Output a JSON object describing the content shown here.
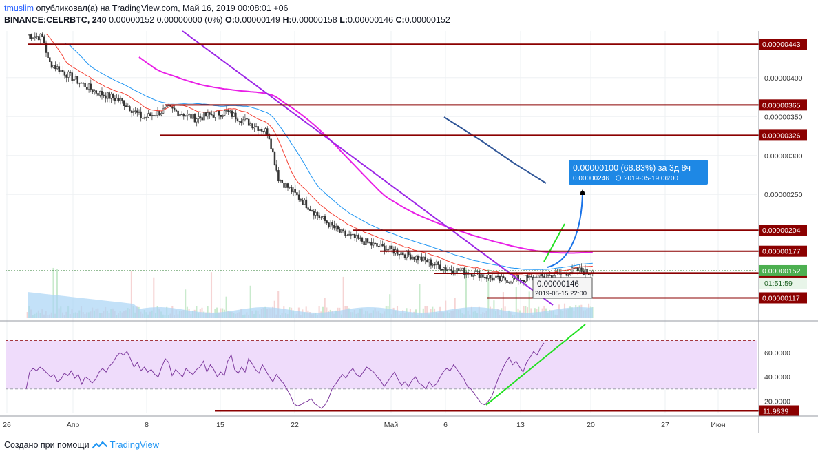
{
  "header": {
    "user": "tmuslim",
    "published": "опубликовал(а) на TradingView.com, Май 16, 2019 00:08:01 +06",
    "symbol": "BINANCE:CELRBTC, 240",
    "quote": "0.00000152 0.00000000 (0%)",
    "o_label": "O:",
    "o_value": "0.00000149",
    "h_label": "H:",
    "h_value": "0.00000158",
    "l_label": "L:",
    "l_value": "0.00000146",
    "c_label": "C:",
    "c_value": "0.00000152"
  },
  "footer": {
    "text": "Создано при помощи",
    "brand": "TradingView"
  },
  "colors": {
    "up": "#26a69a",
    "down": "#ef5350",
    "level": "#8b0000",
    "ma_purple": "#e91fe6",
    "trend_purple": "#9c27e6",
    "ema_red": "#f44336",
    "ema_blue": "#2196f3",
    "dark_blue_line": "#2f5597",
    "green_line": "#22e022",
    "rsi_line": "#7e3a9e",
    "rsi_band": "#efdcfb",
    "projection_blue": "#1a73e8"
  },
  "chart_data": [
    {
      "type": "candlestick",
      "symbol": "BINANCE:CELRBTC",
      "interval": "240",
      "x_ticks": [
        "26",
        "Апр",
        "8",
        "15",
        "22",
        "Май",
        "6",
        "13",
        "20",
        "27",
        "Июн"
      ],
      "y_ticks": [
        "0.00000400",
        "0.00000350",
        "0.00000300",
        "0.00000250"
      ],
      "y_range": [
        9e-07,
        4.6e-06
      ],
      "price_path": [
        [
          0.0,
          455
        ],
        [
          1.5,
          452
        ],
        [
          2.0,
          420
        ],
        [
          4.5,
          398
        ],
        [
          6.5,
          382
        ],
        [
          9.0,
          370
        ],
        [
          11.0,
          348
        ],
        [
          13.5,
          360
        ],
        [
          16.0,
          348
        ],
        [
          19.0,
          356
        ],
        [
          23.0,
          330
        ],
        [
          24.0,
          270
        ],
        [
          26.0,
          245
        ],
        [
          28.0,
          220
        ],
        [
          30.0,
          200
        ],
        [
          33.0,
          185
        ],
        [
          36.5,
          172
        ],
        [
          40.0,
          155
        ],
        [
          43.0,
          148
        ],
        [
          45.0,
          140
        ],
        [
          48.5,
          142
        ],
        [
          51.0,
          148
        ],
        [
          52.5,
          153
        ],
        [
          53.5,
          149
        ],
        [
          54.0,
          152
        ]
      ],
      "horizontal_levels": [
        {
          "price": "0.00000443",
          "value": 4.43e-06
        },
        {
          "price": "0.00000365",
          "value": 3.65e-06
        },
        {
          "price": "0.00000326",
          "value": 3.26e-06
        },
        {
          "price": "0.00000204",
          "value": 2.04e-06
        },
        {
          "price": "0.00000177",
          "value": 1.77e-06
        },
        {
          "price": "0.00000149",
          "value": 1.49e-06
        },
        {
          "price": "0.00000117",
          "value": 1.17e-06
        }
      ],
      "current_price": "0.00000152",
      "countdown": "01:51:59",
      "hover_label": {
        "price": "0.00000146",
        "date": "2019-05-15 22:00"
      },
      "projection": {
        "line1": "0.00000100 (68.83%) за 3д 8ч",
        "line2_price": "0.00000246",
        "line2_date": "2019-05-19  06:00"
      }
    },
    {
      "type": "line",
      "indicator": "RSI",
      "y_ticks": [
        "60.0000",
        "40.0000",
        "20.0000"
      ],
      "y_range": [
        10,
        85
      ],
      "bands": [
        70,
        30
      ],
      "level_line": {
        "label": "11.9839",
        "value": 11.9839
      },
      "values": [
        30,
        44,
        47,
        45,
        48,
        46,
        43,
        40,
        42,
        36,
        38,
        43,
        41,
        45,
        39,
        42,
        34,
        40,
        38,
        35,
        38,
        44,
        47,
        44,
        49,
        52,
        57,
        60,
        58,
        61,
        55,
        48,
        52,
        45,
        48,
        44,
        46,
        42,
        40,
        48,
        55,
        52,
        41,
        46,
        43,
        40,
        47,
        44,
        42,
        46,
        48,
        53,
        44,
        50,
        46,
        40,
        44,
        41,
        53,
        58,
        46,
        43,
        48,
        44,
        55,
        51,
        46,
        43,
        50,
        45,
        40,
        36,
        42,
        38,
        35,
        30,
        25,
        18,
        16,
        17,
        19,
        20,
        22,
        18,
        16,
        14,
        17,
        22,
        30,
        34,
        38,
        42,
        39,
        44,
        47,
        42,
        40,
        44,
        48,
        46,
        44,
        40,
        37,
        32,
        36,
        40,
        44,
        38,
        33,
        36,
        32,
        37,
        40,
        35,
        33,
        30,
        36,
        32,
        34,
        39,
        44,
        47,
        45,
        50,
        46,
        42,
        38,
        32,
        30,
        26,
        22,
        18,
        17,
        20,
        24,
        32,
        40,
        46,
        52,
        56,
        50,
        53,
        48,
        44,
        52,
        56,
        61,
        58,
        64,
        68
      ]
    }
  ]
}
